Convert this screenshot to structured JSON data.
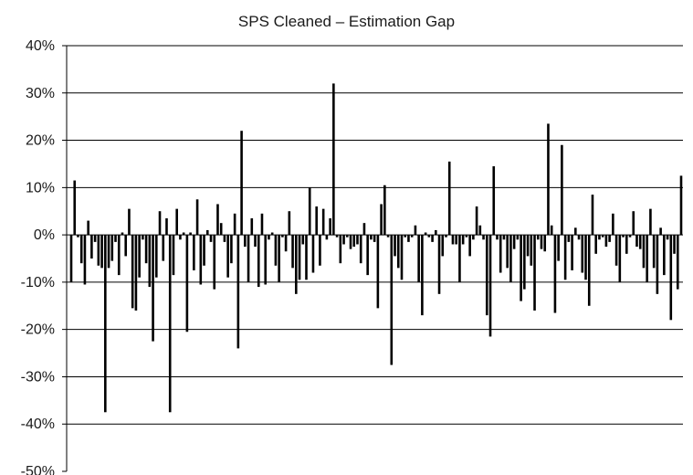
{
  "chart_data": {
    "type": "bar",
    "title": "SPS Cleaned – Estimation Gap",
    "xlabel": "",
    "ylabel": "",
    "ylim": [
      -50,
      40
    ],
    "y_ticks": [
      40,
      30,
      20,
      10,
      0,
      -10,
      -20,
      -30,
      -40,
      -50
    ],
    "y_tick_labels": [
      "40%",
      "30%",
      "20%",
      "10%",
      "0%",
      "-10%",
      "-20%",
      "-30%",
      "-40%",
      "-50%"
    ],
    "grid": true,
    "bar_color": "#000000",
    "grid_color": "#000000",
    "values": [
      -10,
      11.5,
      -0.5,
      -6,
      -10.5,
      3,
      -5,
      -1.5,
      -6.5,
      -7,
      -37.5,
      -7,
      -5.5,
      -1.5,
      -8.5,
      0.5,
      -4.5,
      5.5,
      -15.5,
      -16,
      -9,
      -1,
      -6,
      -11,
      -22.5,
      -9,
      5,
      -5.5,
      3.5,
      -37.5,
      -8.5,
      5.5,
      -1,
      0.5,
      -20.5,
      0.5,
      -7.5,
      7.5,
      -10.5,
      -6.5,
      1,
      -1.5,
      -11.5,
      6.5,
      2.5,
      -1.5,
      -9,
      -6,
      4.5,
      -24,
      22,
      -2.5,
      -10,
      3.5,
      -2.5,
      -11,
      4.5,
      -10.5,
      -1,
      0.5,
      -6.5,
      -10,
      -0.5,
      -3.5,
      5,
      -7,
      -12.5,
      -9.5,
      -2,
      -9.5,
      10,
      -8,
      6,
      -6.5,
      5.5,
      -1,
      3.5,
      32,
      -0.5,
      -6,
      -2,
      -0.5,
      -3,
      -2.5,
      -2,
      -6,
      2.5,
      -8.5,
      -1,
      -1.5,
      -15.5,
      6.5,
      10.5,
      -0.5,
      -27.5,
      -4.5,
      -7,
      -9.5,
      -0.5,
      -1.5,
      -0.5,
      2,
      -10,
      -17,
      0.5,
      -0.5,
      -1.5,
      1,
      -12.5,
      -4.5,
      -0.5,
      15.5,
      -2,
      -2,
      -10,
      -2,
      -0.5,
      -4.5,
      -1,
      6,
      2,
      -1,
      -17,
      -21.5,
      14.5,
      -1,
      -8,
      -1,
      -7,
      -10,
      -3,
      -1,
      -14,
      -11.5,
      -4.5,
      -6.5,
      -16,
      -1,
      -3,
      -3.5,
      23.5,
      2,
      -16.5,
      -5.5,
      19,
      -9.5,
      -1.5,
      -7.5,
      1.5,
      -1,
      -8,
      -9.5,
      -15,
      8.5,
      -4,
      -1,
      -0.5,
      -2.5,
      -1.5,
      4.5,
      -6.5,
      -10,
      -0.5,
      -4,
      -0.5,
      5,
      -2.5,
      -3,
      -7,
      -10,
      5.5,
      -7,
      -12.5,
      1.5,
      -8.5,
      -1,
      -18,
      -4,
      -11.5,
      12.5
    ]
  }
}
